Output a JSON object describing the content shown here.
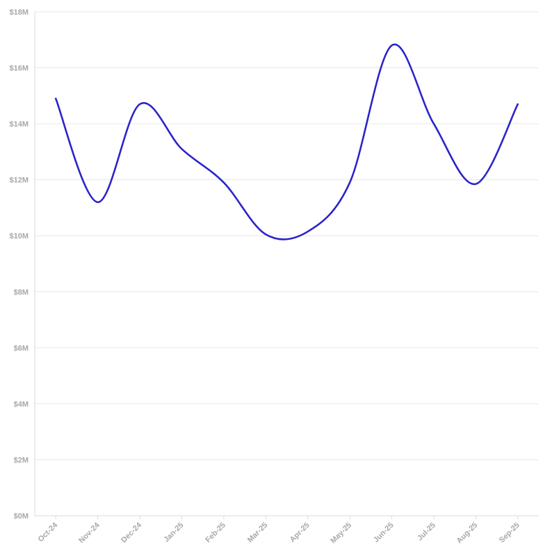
{
  "chart_data": {
    "type": "line",
    "categories": [
      "Oct-24",
      "Nov-24",
      "Dec-24",
      "Jan-25",
      "Feb-25",
      "Mar-25",
      "Apr-25",
      "May-25",
      "Jun-25",
      "Jul-25",
      "Aug-25",
      "Sep-25"
    ],
    "series": [
      {
        "values": [
          14.9,
          11.2,
          14.7,
          13.1,
          11.9,
          10.05,
          10.15,
          11.9,
          16.8,
          14.0,
          11.85,
          14.7
        ],
        "color": "#2b24c9"
      }
    ],
    "y_ticks": [
      {
        "value": 0,
        "label": "$0M"
      },
      {
        "value": 2,
        "label": "$2M"
      },
      {
        "value": 4,
        "label": "$4M"
      },
      {
        "value": 6,
        "label": "$6M"
      },
      {
        "value": 8,
        "label": "$8M"
      },
      {
        "value": 10,
        "label": "$10M"
      },
      {
        "value": 12,
        "label": "$12M"
      },
      {
        "value": 14,
        "label": "$14M"
      },
      {
        "value": 16,
        "label": "$16M"
      },
      {
        "value": 18,
        "label": "$18M"
      }
    ],
    "ylim": [
      0,
      18
    ],
    "title": "",
    "xlabel": "",
    "ylabel": "",
    "grid": true,
    "legend": "none"
  }
}
